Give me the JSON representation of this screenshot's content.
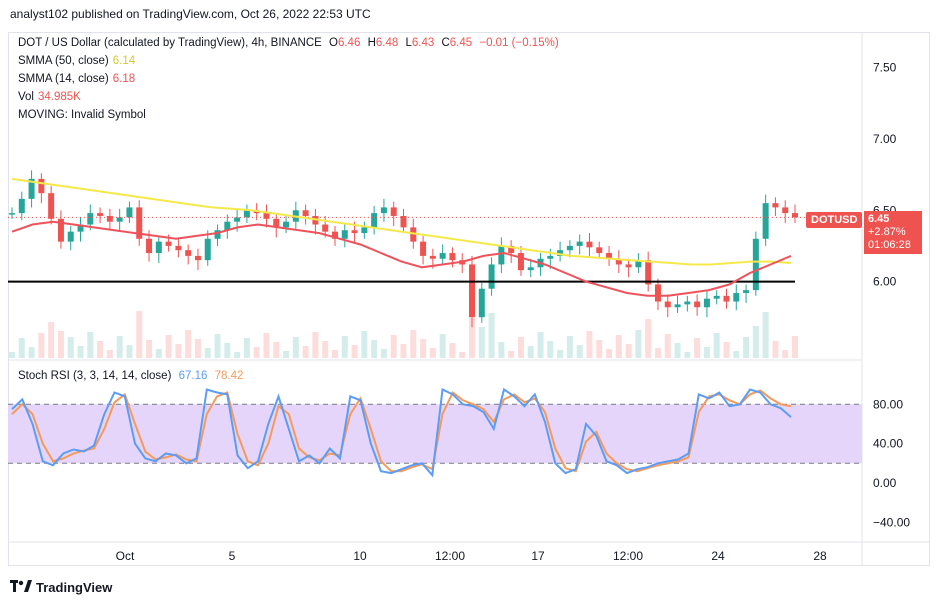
{
  "publish_line": "analyst102 published on TradingView.com, Oct 26, 2022 22:53 UTC",
  "main": {
    "symbol_line": "DOT / US Dollar (calculated by TradingView), 4h, BINANCE",
    "o_label": "O",
    "o_value": "6.46",
    "h_label": "H",
    "h_value": "6.48",
    "l_label": "L",
    "l_value": "6.43",
    "c_label": "C",
    "c_value": "6.45",
    "change": "−0.01 (−0.15%)",
    "smma50_label": "SMMA (50, close)",
    "smma50_value": "6.14",
    "smma14_label": "SMMA (14, close)",
    "smma14_value": "6.18",
    "vol_label": "Vol",
    "vol_value": "34.985K",
    "moving_label": "MOVING: Invalid Symbol"
  },
  "price_axis": [
    "7.50",
    "7.00",
    "6.50",
    "6.00"
  ],
  "price_tag": {
    "symbol": "DOTUSD",
    "price": "6.45",
    "change": "+2.87%",
    "countdown": "01:06:28"
  },
  "rsi": {
    "label": "Stoch RSI (3, 3, 14, 14, close)",
    "k_value": "67.16",
    "d_value": "78.42"
  },
  "rsi_axis": [
    "80.00",
    "40.00",
    "0.00",
    "−40.00"
  ],
  "time_axis": [
    "Oct",
    "5",
    "10",
    "12:00",
    "17",
    "12:00",
    "24",
    "28"
  ],
  "brand": "TradingView",
  "colors": {
    "up": "#26a69a",
    "down": "#ef5350",
    "smma50": "#f5e94a",
    "smma14": "#f0525b",
    "rsi_k": "#5b9cf6",
    "rsi_d": "#f49a5c",
    "rsi_band": "#e6d5fa"
  },
  "chart_data": {
    "type": "candlestick",
    "price_range": [
      5.45,
      7.75
    ],
    "support_level": 6.0,
    "last_price": 6.45,
    "close": [
      6.48,
      6.58,
      6.72,
      6.62,
      6.44,
      6.28,
      6.35,
      6.4,
      6.48,
      6.46,
      6.42,
      6.45,
      6.52,
      6.3,
      6.2,
      6.28,
      6.25,
      6.22,
      6.18,
      6.15,
      6.3,
      6.36,
      6.42,
      6.45,
      6.5,
      6.48,
      6.44,
      6.38,
      6.42,
      6.5,
      6.46,
      6.4,
      6.35,
      6.3,
      6.36,
      6.34,
      6.38,
      6.48,
      6.52,
      6.46,
      6.38,
      6.28,
      6.18,
      6.16,
      6.2,
      6.15,
      6.12,
      5.75,
      5.95,
      6.12,
      6.25,
      6.2,
      6.08,
      6.1,
      6.16,
      6.18,
      6.22,
      6.25,
      6.28,
      6.24,
      6.2,
      6.16,
      6.12,
      6.1,
      6.15,
      5.98,
      5.86,
      5.82,
      5.84,
      5.86,
      5.82,
      5.88,
      5.9,
      5.86,
      5.92,
      5.94,
      6.3,
      6.55,
      6.52,
      6.48,
      6.45
    ],
    "smma50": [
      6.72,
      6.7,
      6.68,
      6.66,
      6.64,
      6.62,
      6.6,
      6.58,
      6.56,
      6.54,
      6.52,
      6.51,
      6.5,
      6.48,
      6.46,
      6.44,
      6.42,
      6.4,
      6.38,
      6.36,
      6.34,
      6.32,
      6.3,
      6.28,
      6.26,
      6.24,
      6.22,
      6.2,
      6.18,
      6.17,
      6.16,
      6.15,
      6.14,
      6.13,
      6.12,
      6.12,
      6.13,
      6.14,
      6.14,
      6.13
    ],
    "smma14": [
      6.35,
      6.4,
      6.42,
      6.4,
      6.38,
      6.36,
      6.34,
      6.32,
      6.3,
      6.32,
      6.34,
      6.38,
      6.4,
      6.38,
      6.36,
      6.34,
      6.3,
      6.26,
      6.2,
      6.14,
      6.1,
      6.12,
      6.14,
      6.18,
      6.2,
      6.16,
      6.12,
      6.06,
      6.0,
      5.96,
      5.92,
      5.9,
      5.9,
      5.92,
      5.94,
      5.98,
      6.06,
      6.12,
      6.18
    ],
    "stoch_k": [
      75,
      85,
      60,
      22,
      18,
      30,
      34,
      32,
      38,
      70,
      92,
      88,
      40,
      25,
      22,
      30,
      28,
      20,
      25,
      95,
      92,
      90,
      28,
      15,
      22,
      60,
      88,
      55,
      22,
      28,
      20,
      35,
      25,
      88,
      84,
      40,
      12,
      10,
      14,
      18,
      20,
      8,
      95,
      90,
      80,
      78,
      72,
      55,
      95,
      88,
      78,
      90,
      62,
      20,
      10,
      14,
      60,
      48,
      22,
      18,
      10,
      14,
      16,
      20,
      22,
      24,
      30,
      90,
      86,
      92,
      78,
      80,
      95,
      92,
      80,
      76,
      67
    ],
    "stoch_d": [
      70,
      80,
      70,
      40,
      22,
      25,
      30,
      33,
      35,
      55,
      82,
      90,
      60,
      32,
      24,
      26,
      29,
      24,
      22,
      70,
      88,
      92,
      50,
      22,
      18,
      40,
      78,
      70,
      35,
      26,
      23,
      30,
      28,
      70,
      86,
      55,
      22,
      12,
      12,
      16,
      19,
      14,
      70,
      92,
      84,
      80,
      75,
      62,
      85,
      90,
      82,
      86,
      72,
      35,
      15,
      12,
      42,
      52,
      30,
      20,
      14,
      12,
      15,
      18,
      20,
      22,
      26,
      72,
      88,
      90,
      84,
      80,
      90,
      94,
      86,
      80,
      78
    ],
    "time_labels": [
      "Oct",
      "5",
      "10",
      "12:00",
      "17",
      "12:00",
      "24",
      "28"
    ]
  }
}
